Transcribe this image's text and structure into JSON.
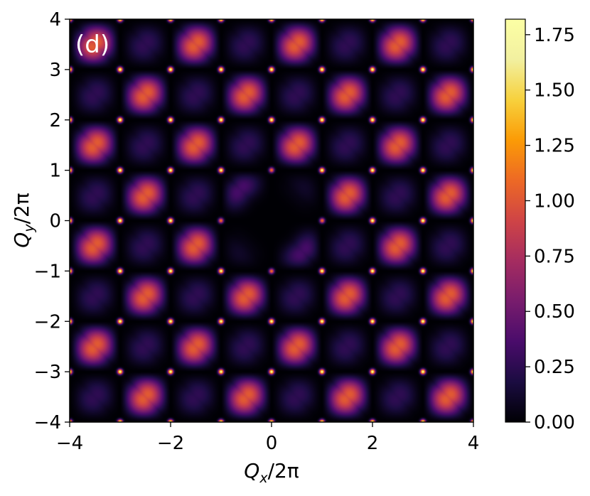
{
  "chart_data": {
    "type": "heatmap",
    "panel_label": "(d)",
    "xlabel_main": "Q",
    "xlabel_sub": "x",
    "xlabel_rest": "/2π",
    "ylabel_main": "Q",
    "ylabel_sub": "y",
    "ylabel_rest": "/2π",
    "xlim": [
      -4,
      4
    ],
    "ylim": [
      -4,
      4
    ],
    "xticks": [
      -4,
      -2,
      0,
      2,
      4
    ],
    "xtick_labels": [
      "−4",
      "−2",
      "0",
      "2",
      "4"
    ],
    "yticks": [
      -4,
      -3,
      -2,
      -1,
      0,
      1,
      2,
      3,
      4
    ],
    "ytick_labels": [
      "−4",
      "−3",
      "−2",
      "−1",
      "0",
      "1",
      "2",
      "3",
      "4"
    ],
    "colormap": "inferno",
    "colorbar": {
      "range": [
        0,
        1.82
      ],
      "ticks": [
        0,
        0.25,
        0.5,
        0.75,
        1.0,
        1.25,
        1.5,
        1.75
      ],
      "tick_labels": [
        "0.00",
        "0.25",
        "0.50",
        "0.75",
        "1.00",
        "1.25",
        "1.50",
        "1.75"
      ]
    },
    "pattern": {
      "description_values": "periodic lattice with bright peaks (~1.8) at integer (Qx, Qy) points, value ~0.6 inside cells, ~0 near origin and along dark lobes",
      "peak_value": 1.8,
      "cell_value": 0.6,
      "dark_value": 0.0,
      "center_dark_radius": 1.0
    }
  }
}
